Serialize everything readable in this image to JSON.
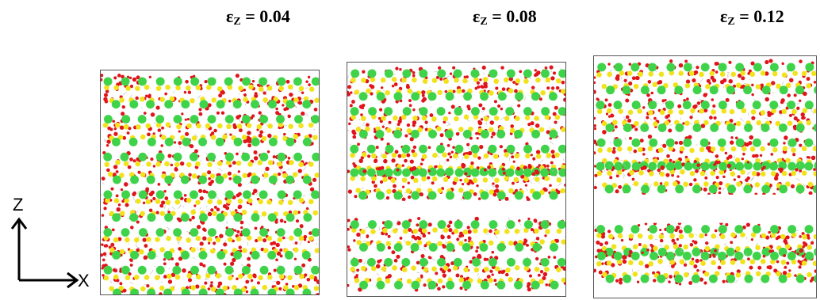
{
  "panels": [
    {
      "label_sym": "ε",
      "label_sub": "Z",
      "label_val": " = 0.04",
      "strain": 0.04,
      "has_gap": false
    },
    {
      "label_sym": "ε",
      "label_sub": "Z",
      "label_val": " = 0.08",
      "strain": 0.08,
      "has_gap": true
    },
    {
      "label_sym": "ε",
      "label_sub": "Z",
      "label_val": " = 0.12",
      "strain": 0.12,
      "has_gap": true
    }
  ],
  "axes": {
    "vertical": "Z",
    "horizontal": "X"
  },
  "colors": {
    "oxygen": "#e0141b",
    "silicon": "#f2e21c",
    "cation": "#3fd34a",
    "frame": "#555555"
  }
}
